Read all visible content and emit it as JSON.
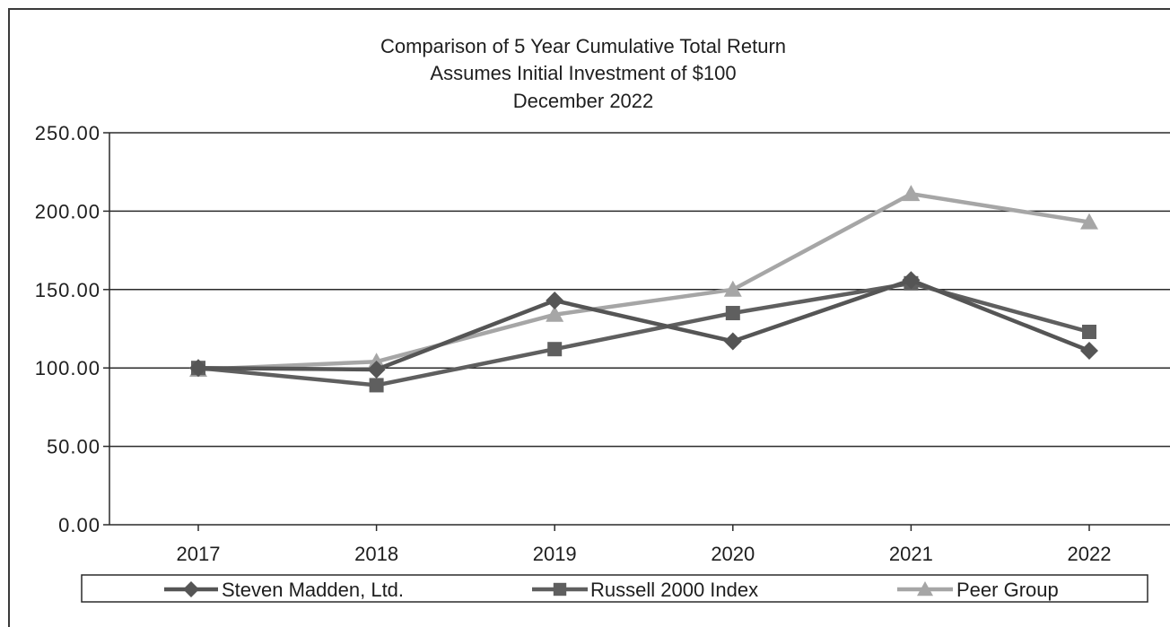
{
  "chart_data": {
    "type": "line",
    "title_lines": [
      "Comparison of 5 Year Cumulative Total Return",
      "Assumes Initial Investment of $100",
      "December 2022"
    ],
    "categories": [
      "2017",
      "2018",
      "2019",
      "2020",
      "2021",
      "2022"
    ],
    "ylim": [
      0,
      250
    ],
    "yticks": [
      "0.00",
      "50.00",
      "100.00",
      "150.00",
      "200.00",
      "250.00"
    ],
    "ytick_values": [
      0,
      50,
      100,
      150,
      200,
      250
    ],
    "grid": true,
    "legend_position": "bottom",
    "series": [
      {
        "name": "Steven Madden, Ltd.",
        "marker": "diamond",
        "color": "#555555",
        "values": [
          100,
          99,
          143,
          117,
          156,
          111
        ]
      },
      {
        "name": "Russell 2000 Index",
        "marker": "square",
        "color": "#5f5f5f",
        "values": [
          100,
          89,
          112,
          135,
          154,
          123
        ]
      },
      {
        "name": "Peer Group",
        "marker": "triangle",
        "color": "#a6a6a6",
        "values": [
          99,
          104,
          134,
          150,
          211,
          193
        ]
      }
    ]
  }
}
